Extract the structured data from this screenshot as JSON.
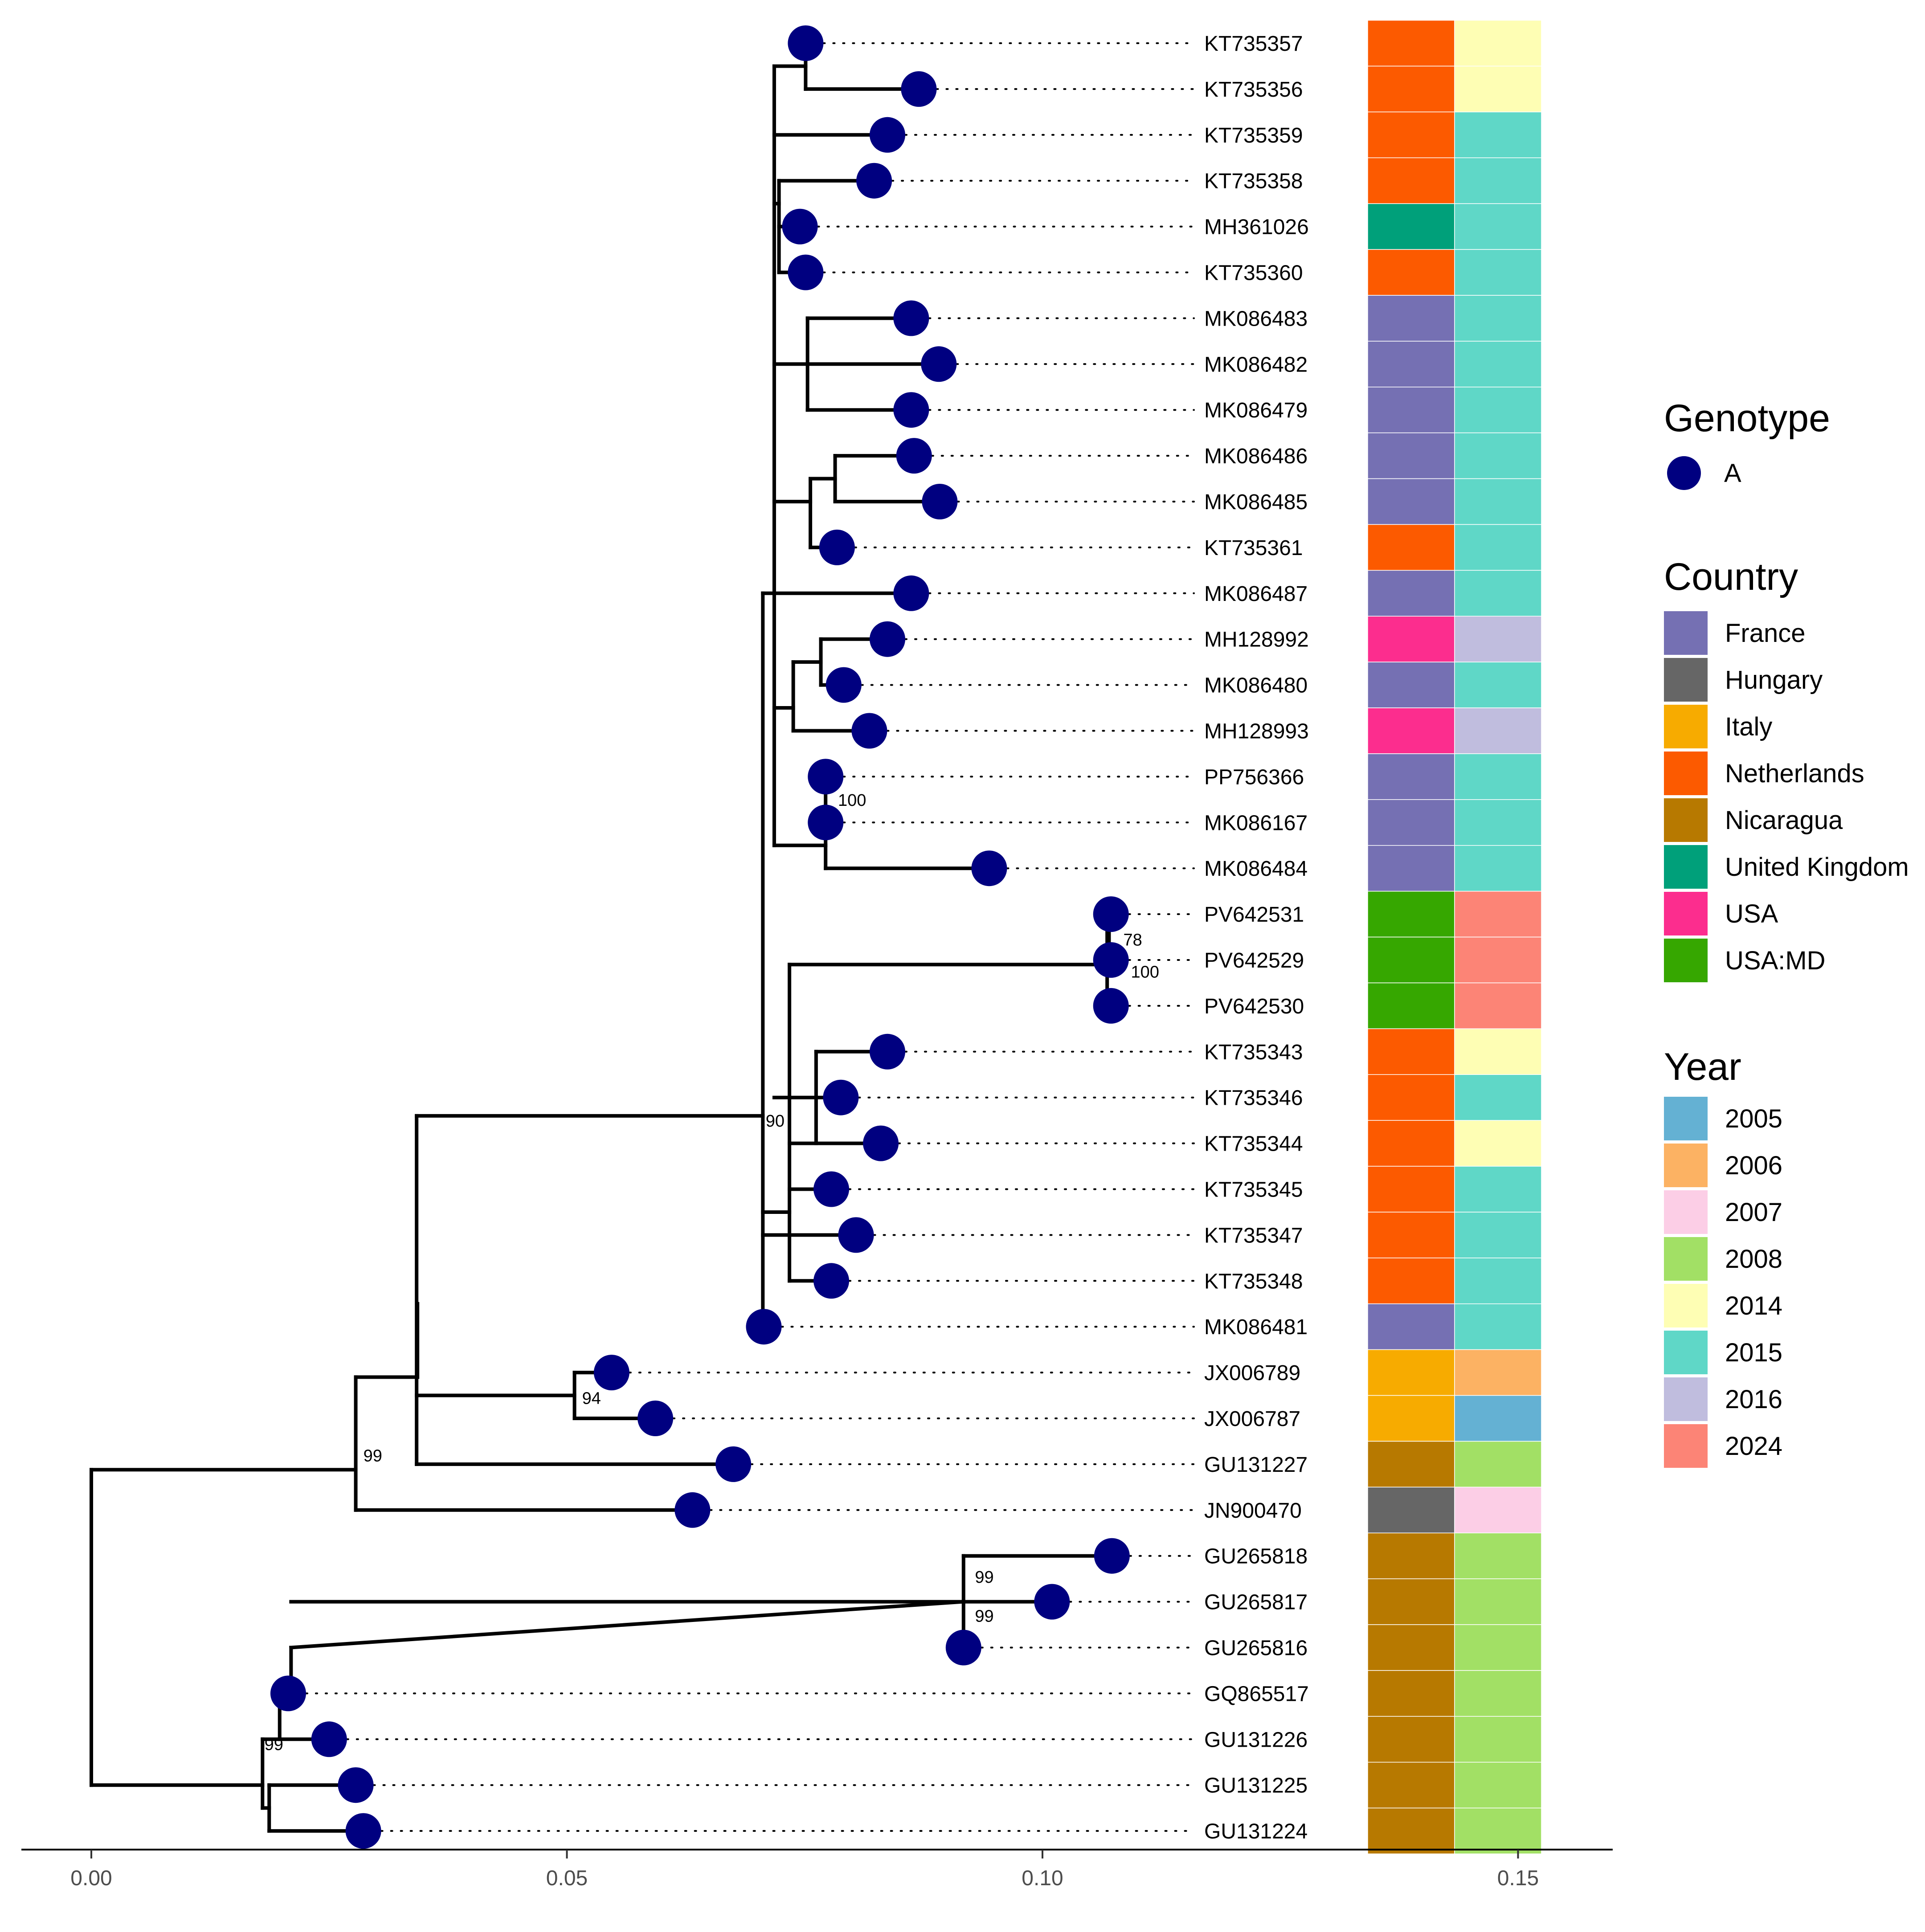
{
  "tree": {
    "x_axis": {
      "min": 0.0,
      "max": 0.16,
      "ticks": [
        0.0,
        0.05,
        0.1,
        0.15
      ],
      "tick_labels": [
        "0.00",
        "0.05",
        "0.10",
        "0.15"
      ]
    },
    "tip_color": "#000080",
    "tips": [
      {
        "label": "KT735357",
        "x": 0.0751,
        "country": "Netherlands",
        "year": "2014"
      },
      {
        "label": "KT735356",
        "x": 0.087,
        "country": "Netherlands",
        "year": "2014"
      },
      {
        "label": "KT735359",
        "x": 0.0837,
        "country": "Netherlands",
        "year": "2015"
      },
      {
        "label": "KT735358",
        "x": 0.0823,
        "country": "Netherlands",
        "year": "2015"
      },
      {
        "label": "MH361026",
        "x": 0.0745,
        "country": "United Kingdom",
        "year": "2015"
      },
      {
        "label": "KT735360",
        "x": 0.0751,
        "country": "Netherlands",
        "year": "2015"
      },
      {
        "label": "MK086483",
        "x": 0.0862,
        "country": "France",
        "year": "2015"
      },
      {
        "label": "MK086482",
        "x": 0.0891,
        "country": "France",
        "year": "2015"
      },
      {
        "label": "MK086479",
        "x": 0.0862,
        "country": "France",
        "year": "2015"
      },
      {
        "label": "MK086486",
        "x": 0.0865,
        "country": "France",
        "year": "2015"
      },
      {
        "label": "MK086485",
        "x": 0.0892,
        "country": "France",
        "year": "2015"
      },
      {
        "label": "KT735361",
        "x": 0.0784,
        "country": "Netherlands",
        "year": "2015"
      },
      {
        "label": "MK086487",
        "x": 0.0862,
        "country": "France",
        "year": "2015"
      },
      {
        "label": "MH128992",
        "x": 0.0837,
        "country": "USA",
        "year": "2016"
      },
      {
        "label": "MK086480",
        "x": 0.0791,
        "country": "France",
        "year": "2015"
      },
      {
        "label": "MH128993",
        "x": 0.0818,
        "country": "USA",
        "year": "2016"
      },
      {
        "label": "PP756366",
        "x": 0.0772,
        "country": "France",
        "year": "2015"
      },
      {
        "label": "MK086167",
        "x": 0.0772,
        "country": "France",
        "year": "2015"
      },
      {
        "label": "MK086484",
        "x": 0.0944,
        "country": "France",
        "year": "2015"
      },
      {
        "label": "PV642531",
        "x": 0.1072,
        "country": "USA:MD",
        "year": "2024"
      },
      {
        "label": "PV642529",
        "x": 0.1072,
        "country": "USA:MD",
        "year": "2024"
      },
      {
        "label": "PV642530",
        "x": 0.1072,
        "country": "USA:MD",
        "year": "2024"
      },
      {
        "label": "KT735343",
        "x": 0.0837,
        "country": "Netherlands",
        "year": "2014"
      },
      {
        "label": "KT735346",
        "x": 0.0788,
        "country": "Netherlands",
        "year": "2015"
      },
      {
        "label": "KT735344",
        "x": 0.083,
        "country": "Netherlands",
        "year": "2014"
      },
      {
        "label": "KT735345",
        "x": 0.0778,
        "country": "Netherlands",
        "year": "2015"
      },
      {
        "label": "KT735347",
        "x": 0.0804,
        "country": "Netherlands",
        "year": "2015"
      },
      {
        "label": "KT735348",
        "x": 0.0778,
        "country": "Netherlands",
        "year": "2015"
      },
      {
        "label": "MK086481",
        "x": 0.0707,
        "country": "France",
        "year": "2015"
      },
      {
        "label": "JX006789",
        "x": 0.0547,
        "country": "Italy",
        "year": "2006"
      },
      {
        "label": "JX006787",
        "x": 0.0593,
        "country": "Italy",
        "year": "2005"
      },
      {
        "label": "GU131227",
        "x": 0.0675,
        "country": "Nicaragua",
        "year": "2008"
      },
      {
        "label": "JN900470",
        "x": 0.0632,
        "country": "Hungary",
        "year": "2007"
      },
      {
        "label": "GU265818",
        "x": 0.1073,
        "country": "Nicaragua",
        "year": "2008"
      },
      {
        "label": "GU265817",
        "x": 0.101,
        "country": "Nicaragua",
        "year": "2008"
      },
      {
        "label": "GU265816",
        "x": 0.0917,
        "country": "Nicaragua",
        "year": "2008"
      },
      {
        "label": "GQ865517",
        "x": 0.0207,
        "country": "Nicaragua",
        "year": "2008"
      },
      {
        "label": "GU131226",
        "x": 0.025,
        "country": "Nicaragua",
        "year": "2008"
      },
      {
        "label": "GU131225",
        "x": 0.0278,
        "country": "Nicaragua",
        "year": "2008"
      },
      {
        "label": "GU131224",
        "x": 0.0286,
        "country": "Nicaragua",
        "year": "2008"
      }
    ],
    "branches": [
      [
        0.0,
        0.0,
        7.06,
        36.84
      ],
      [
        0.0018,
        0.0,
        28.06,
        15.25
      ],
      [
        0.0034,
        0.0,
        32.75,
        21.75
      ],
      [
        0.0707,
        28.06,
        0.0,
        18.95
      ],
      [
        0.0751,
        0.0751,
        0.0,
        1.0
      ],
      [
        0.0717,
        0.0717,
        2.0,
        3.5
      ],
      [
        0.0717,
        0.0723,
        3.0,
        5.0
      ],
      [
        0.0717,
        0.0717,
        4.5,
        12.0
      ],
      [
        0.0751,
        0.0751,
        6.0,
        8.0
      ],
      [
        0.0728,
        0.0728,
        10.5,
        11.0
      ],
      [
        0.0757,
        0.0757,
        9.0,
        10.0
      ],
      [
        0.0717,
        0.0717,
        13.0,
        15.0
      ],
      [
        0.0734,
        0.0734,
        13.0,
        14.0
      ],
      [
        0.0717,
        0.0717,
        16.75,
        18.0
      ],
      [
        0.0772,
        0.0772,
        16.0,
        17.5
      ],
      [
        0.0762,
        0.0762,
        20.0,
        21.0
      ],
      [
        0.0767,
        0.0767,
        23.0,
        24.0
      ],
      [
        0.0734,
        0.0734,
        22.5,
        27.0
      ],
      [
        0.0734,
        0.0734,
        25.5,
        27.0
      ],
      [
        0.051,
        0.051,
        29.0,
        30.0
      ],
      [
        0.02,
        0.02,
        34.5,
        37.5
      ],
      [
        0.02,
        0.02,
        36.0,
        37.0
      ],
      [
        0.0917,
        0.0917,
        33.0,
        34.5
      ],
      [
        0.0917,
        0.0917,
        34.0,
        35.0
      ]
    ],
    "bootstrap": [
      {
        "label": "100",
        "x": 0.0785,
        "y": 16.5
      },
      {
        "label": "78",
        "x": 0.1085,
        "y": 19.55
      },
      {
        "label": "100",
        "x": 0.1093,
        "y": 20.25
      },
      {
        "label": "90",
        "x": 0.0709,
        "y": 23.5
      },
      {
        "label": "94",
        "x": 0.0516,
        "y": 29.55
      },
      {
        "label": "99",
        "x": 0.0286,
        "y": 30.8
      },
      {
        "label": "99",
        "x": 0.0929,
        "y": 33.45
      },
      {
        "label": "99",
        "x": 0.0929,
        "y": 34.3
      },
      {
        "label": "99",
        "x": 0.0182,
        "y": 37.1
      }
    ]
  },
  "heatmap": {
    "columns": [
      "Country",
      "Year"
    ]
  },
  "legend": {
    "genotype": {
      "title": "Genotype",
      "items": [
        {
          "label": "A",
          "color": "#000080"
        }
      ]
    },
    "country": {
      "title": "Country",
      "items": [
        {
          "label": "France",
          "color": "#7570B3"
        },
        {
          "label": "Hungary",
          "color": "#666666"
        },
        {
          "label": "Italy",
          "color": "#F7AB00"
        },
        {
          "label": "Netherlands",
          "color": "#FC5A00"
        },
        {
          "label": "Nicaragua",
          "color": "#B77900"
        },
        {
          "label": "United Kingdom",
          "color": "#00A07A"
        },
        {
          "label": "USA",
          "color": "#FC2D8E"
        },
        {
          "label": "USA:MD",
          "color": "#36A700"
        }
      ]
    },
    "year": {
      "title": "Year",
      "items": [
        {
          "label": "2005",
          "color": "#64B1D3"
        },
        {
          "label": "2006",
          "color": "#FCB263"
        },
        {
          "label": "2007",
          "color": "#FCCEE6"
        },
        {
          "label": "2008",
          "color": "#A2E065"
        },
        {
          "label": "2014",
          "color": "#FEFEB4"
        },
        {
          "label": "2015",
          "color": "#5FD7C7"
        },
        {
          "label": "2016",
          "color": "#C0BDDE"
        },
        {
          "label": "2024",
          "color": "#FC8476"
        }
      ]
    }
  }
}
